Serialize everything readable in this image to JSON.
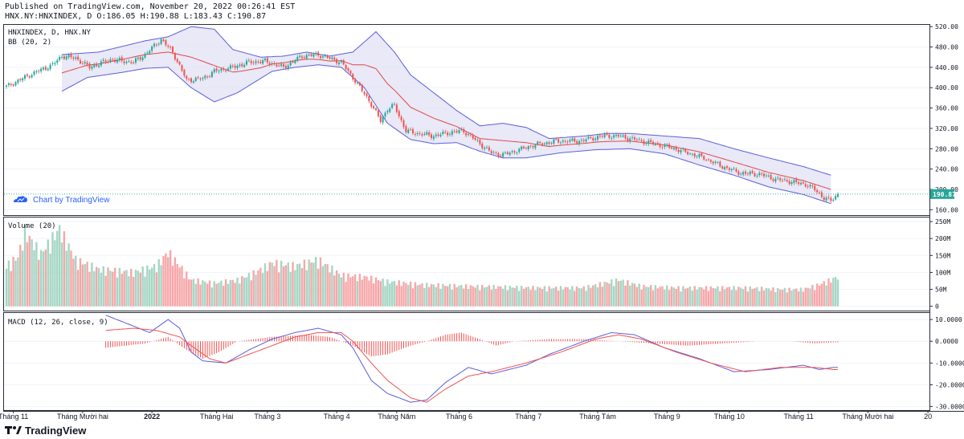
{
  "header": {
    "published": "Published on TradingView.com, November 20, 2022 00:26:41 EST",
    "ticker_line": "HNX.NY:HNXINDEX, D O:186.05 H:190.88 L:183.43 C:190.87"
  },
  "footer": {
    "brand": "TradingView"
  },
  "watermark": {
    "label": "Chart by TradingView"
  },
  "colors": {
    "up": "#26a69a",
    "down": "#ef5350",
    "vol_up": "#a5d6c4",
    "vol_down": "#f7a7a9",
    "bb_band": "#5b5fdb",
    "bb_fill": "#e3e3f5",
    "bb_mid": "#e04848",
    "macd_line": "#5b5fdb",
    "signal_line": "#ef5350",
    "hist": "#ef5350",
    "last_price": "#26a69a",
    "watermark": "#2962ff"
  },
  "chart_data": [
    {
      "id": "price",
      "type": "candlestick",
      "title": "HNXINDEX, D, HNX.NY",
      "indicator_label": "BB (20, 2)",
      "ylim": [
        148,
        525
      ],
      "yticks": [
        160,
        200,
        240,
        280,
        320,
        360,
        400,
        440,
        480,
        520
      ],
      "ytick_labels": [
        "160.00",
        "200.00",
        "240.00",
        "280.00",
        "320.00",
        "360.00",
        "400.00",
        "440.00",
        "480.00",
        "520.00"
      ],
      "last_price": 190.87,
      "last_price_label": "190.87",
      "anchors": [
        [
          0,
          402
        ],
        [
          10,
          425
        ],
        [
          20,
          445
        ],
        [
          24,
          462
        ],
        [
          30,
          458
        ],
        [
          36,
          440
        ],
        [
          45,
          455
        ],
        [
          55,
          450
        ],
        [
          60,
          465
        ],
        [
          67,
          495
        ],
        [
          72,
          470
        ],
        [
          78,
          415
        ],
        [
          85,
          418
        ],
        [
          90,
          432
        ],
        [
          98,
          440
        ],
        [
          105,
          450
        ],
        [
          112,
          452
        ],
        [
          120,
          440
        ],
        [
          128,
          462
        ],
        [
          135,
          465
        ],
        [
          145,
          450
        ],
        [
          150,
          420
        ],
        [
          157,
          375
        ],
        [
          162,
          335
        ],
        [
          165,
          358
        ],
        [
          168,
          365
        ],
        [
          173,
          315
        ],
        [
          178,
          310
        ],
        [
          185,
          305
        ],
        [
          192,
          312
        ],
        [
          198,
          315
        ],
        [
          205,
          290
        ],
        [
          210,
          272
        ],
        [
          215,
          268
        ],
        [
          222,
          278
        ],
        [
          228,
          287
        ],
        [
          238,
          295
        ],
        [
          248,
          295
        ],
        [
          258,
          305
        ],
        [
          265,
          305
        ],
        [
          272,
          298
        ],
        [
          280,
          290
        ],
        [
          288,
          282
        ],
        [
          295,
          272
        ],
        [
          302,
          262
        ],
        [
          310,
          245
        ],
        [
          318,
          232
        ],
        [
          326,
          230
        ],
        [
          333,
          220
        ],
        [
          340,
          215
        ],
        [
          346,
          210
        ],
        [
          350,
          200
        ],
        [
          354,
          183
        ],
        [
          357,
          178
        ],
        [
          360,
          191
        ]
      ],
      "bb_upper_anchors": [
        [
          24,
          465
        ],
        [
          40,
          470
        ],
        [
          60,
          492
        ],
        [
          70,
          500
        ],
        [
          80,
          520
        ],
        [
          90,
          515
        ],
        [
          98,
          475
        ],
        [
          110,
          460
        ],
        [
          120,
          462
        ],
        [
          130,
          470
        ],
        [
          140,
          462
        ],
        [
          150,
          470
        ],
        [
          160,
          510
        ],
        [
          168,
          470
        ],
        [
          175,
          425
        ],
        [
          185,
          390
        ],
        [
          195,
          355
        ],
        [
          205,
          325
        ],
        [
          215,
          330
        ],
        [
          225,
          322
        ],
        [
          235,
          300
        ],
        [
          250,
          305
        ],
        [
          260,
          310
        ],
        [
          270,
          310
        ],
        [
          285,
          305
        ],
        [
          300,
          300
        ],
        [
          315,
          280
        ],
        [
          330,
          262
        ],
        [
          345,
          245
        ],
        [
          357,
          228
        ]
      ],
      "bb_lower_anchors": [
        [
          24,
          393
        ],
        [
          35,
          420
        ],
        [
          50,
          430
        ],
        [
          60,
          438
        ],
        [
          70,
          440
        ],
        [
          80,
          400
        ],
        [
          90,
          372
        ],
        [
          100,
          390
        ],
        [
          115,
          432
        ],
        [
          125,
          440
        ],
        [
          135,
          445
        ],
        [
          145,
          440
        ],
        [
          155,
          400
        ],
        [
          165,
          330
        ],
        [
          175,
          298
        ],
        [
          185,
          290
        ],
        [
          195,
          292
        ],
        [
          205,
          275
        ],
        [
          215,
          262
        ],
        [
          225,
          262
        ],
        [
          240,
          272
        ],
        [
          255,
          278
        ],
        [
          270,
          280
        ],
        [
          285,
          270
        ],
        [
          300,
          248
        ],
        [
          315,
          228
        ],
        [
          330,
          205
        ],
        [
          345,
          190
        ],
        [
          357,
          172
        ]
      ]
    },
    {
      "id": "volume",
      "type": "bar",
      "title": "Volume (20)",
      "ylim": [
        -15,
        262
      ],
      "yticks": [
        0,
        50,
        100,
        150,
        200,
        250
      ],
      "ytick_labels": [
        "0",
        "50M",
        "100M",
        "150M",
        "200M",
        "250M"
      ],
      "anchors": [
        [
          0,
          130
        ],
        [
          5,
          160
        ],
        [
          8,
          240
        ],
        [
          15,
          170
        ],
        [
          23,
          250
        ],
        [
          30,
          150
        ],
        [
          40,
          120
        ],
        [
          55,
          110
        ],
        [
          65,
          130
        ],
        [
          70,
          175
        ],
        [
          80,
          85
        ],
        [
          90,
          75
        ],
        [
          100,
          85
        ],
        [
          108,
          110
        ],
        [
          115,
          140
        ],
        [
          125,
          130
        ],
        [
          135,
          150
        ],
        [
          145,
          100
        ],
        [
          155,
          95
        ],
        [
          165,
          80
        ],
        [
          180,
          70
        ],
        [
          200,
          65
        ],
        [
          230,
          60
        ],
        [
          250,
          60
        ],
        [
          265,
          85
        ],
        [
          275,
          65
        ],
        [
          290,
          60
        ],
        [
          305,
          60
        ],
        [
          320,
          60
        ],
        [
          335,
          55
        ],
        [
          345,
          55
        ],
        [
          352,
          70
        ],
        [
          360,
          95
        ]
      ]
    },
    {
      "id": "macd",
      "type": "line",
      "title": "MACD (12, 26, close, 9)",
      "ylim": [
        -32,
        13
      ],
      "yticks": [
        10,
        0,
        -10,
        -20,
        -30
      ],
      "ytick_labels": [
        "10.0000",
        "0.0000",
        "-10.0000",
        "-20.0000",
        "-30.0000"
      ],
      "macd_anchors": [
        [
          43,
          12
        ],
        [
          55,
          7
        ],
        [
          62,
          4
        ],
        [
          70,
          10
        ],
        [
          75,
          6
        ],
        [
          80,
          -5
        ],
        [
          85,
          -9
        ],
        [
          95,
          -10
        ],
        [
          105,
          -4
        ],
        [
          115,
          1
        ],
        [
          125,
          4
        ],
        [
          135,
          6
        ],
        [
          145,
          3
        ],
        [
          150,
          -3
        ],
        [
          158,
          -18
        ],
        [
          165,
          -24
        ],
        [
          175,
          -28
        ],
        [
          182,
          -27
        ],
        [
          190,
          -19
        ],
        [
          200,
          -12
        ],
        [
          210,
          -15
        ],
        [
          225,
          -11
        ],
        [
          235,
          -6
        ],
        [
          250,
          0
        ],
        [
          262,
          4
        ],
        [
          272,
          3
        ],
        [
          285,
          -3
        ],
        [
          300,
          -8
        ],
        [
          315,
          -14
        ],
        [
          330,
          -13
        ],
        [
          345,
          -11
        ],
        [
          352,
          -13
        ],
        [
          358,
          -12
        ]
      ],
      "signal_anchors": [
        [
          43,
          5
        ],
        [
          55,
          6
        ],
        [
          65,
          5
        ],
        [
          75,
          2
        ],
        [
          80,
          -2
        ],
        [
          88,
          -8
        ],
        [
          95,
          -10
        ],
        [
          105,
          -6
        ],
        [
          115,
          -2
        ],
        [
          125,
          2
        ],
        [
          135,
          4
        ],
        [
          145,
          4
        ],
        [
          150,
          0
        ],
        [
          158,
          -10
        ],
        [
          165,
          -18
        ],
        [
          175,
          -26
        ],
        [
          182,
          -28
        ],
        [
          190,
          -22
        ],
        [
          200,
          -16
        ],
        [
          210,
          -14
        ],
        [
          225,
          -10
        ],
        [
          240,
          -5
        ],
        [
          255,
          1
        ],
        [
          265,
          3
        ],
        [
          275,
          1
        ],
        [
          290,
          -5
        ],
        [
          305,
          -10
        ],
        [
          320,
          -14
        ],
        [
          335,
          -12
        ],
        [
          350,
          -12
        ],
        [
          358,
          -13
        ]
      ],
      "hist_anchors": [
        [
          43,
          -3
        ],
        [
          60,
          -1
        ],
        [
          70,
          2
        ],
        [
          78,
          -4
        ],
        [
          85,
          -8
        ],
        [
          92,
          -5
        ],
        [
          100,
          0
        ],
        [
          115,
          2
        ],
        [
          130,
          3
        ],
        [
          140,
          2
        ],
        [
          150,
          -2
        ],
        [
          158,
          -7
        ],
        [
          165,
          -6
        ],
        [
          175,
          -2
        ],
        [
          182,
          0
        ],
        [
          190,
          3
        ],
        [
          197,
          4
        ],
        [
          205,
          1
        ],
        [
          212,
          -2
        ],
        [
          220,
          0
        ],
        [
          235,
          1
        ],
        [
          250,
          1
        ],
        [
          265,
          0
        ],
        [
          280,
          -1
        ],
        [
          295,
          -2
        ],
        [
          310,
          -1
        ],
        [
          325,
          0
        ],
        [
          340,
          0
        ],
        [
          350,
          -1
        ],
        [
          358,
          -0.5
        ]
      ]
    }
  ],
  "xaxis": {
    "bars": 361,
    "ticks": [
      {
        "label": "Tháng 11",
        "idx": 3
      },
      {
        "label": "Tháng Mười hai",
        "idx": 33
      },
      {
        "label": "2022",
        "idx": 63
      },
      {
        "label": "Tháng Hai",
        "idx": 91
      },
      {
        "label": "Tháng 3",
        "idx": 113
      },
      {
        "label": "Tháng 4",
        "idx": 143
      },
      {
        "label": "Tháng Năm",
        "idx": 169
      },
      {
        "label": "Tháng 6",
        "idx": 196
      },
      {
        "label": "Tháng 7",
        "idx": 226
      },
      {
        "label": "Tháng Tám",
        "idx": 256
      },
      {
        "label": "Tháng 9",
        "idx": 286
      },
      {
        "label": "Tháng 10",
        "idx": 313
      },
      {
        "label": "Tháng 11",
        "idx": 343
      },
      {
        "label": "Tháng Mười hai",
        "idx": 373
      },
      {
        "label": "20",
        "idx": 399
      }
    ]
  }
}
